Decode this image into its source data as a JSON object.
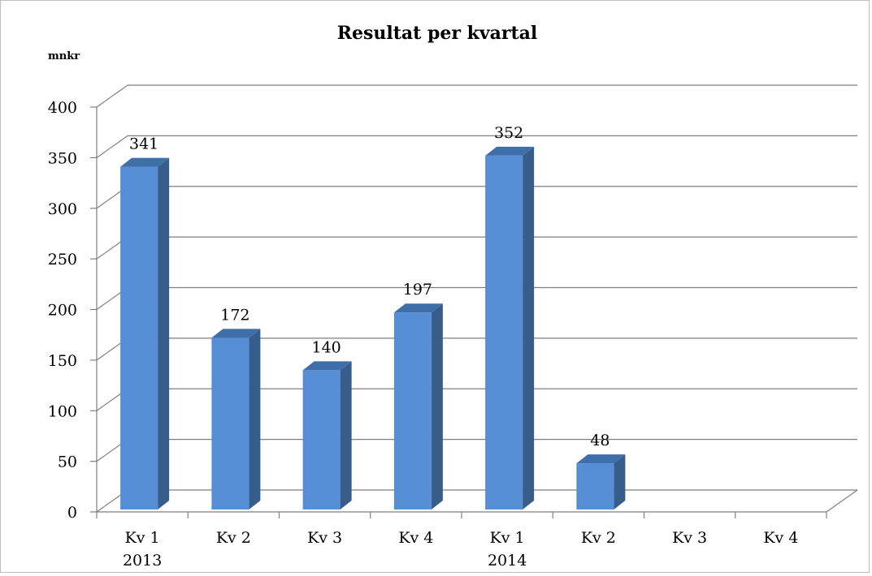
{
  "chart_data": {
    "type": "bar",
    "title": "Resultat per kvartal",
    "unit_label": "mnkr",
    "xlabel": "",
    "ylabel": "",
    "ylim": [
      0,
      400
    ],
    "yticks": [
      0,
      50,
      100,
      150,
      200,
      250,
      300,
      350,
      400
    ],
    "categories": [
      {
        "label": "Kv 1",
        "year": "2013"
      },
      {
        "label": "Kv 2",
        "year": ""
      },
      {
        "label": "Kv 3",
        "year": ""
      },
      {
        "label": "Kv 4",
        "year": ""
      },
      {
        "label": "Kv 1",
        "year": "2014"
      },
      {
        "label": "Kv 2",
        "year": ""
      },
      {
        "label": "Kv 3",
        "year": ""
      },
      {
        "label": "Kv 4",
        "year": ""
      }
    ],
    "values": [
      341,
      172,
      140,
      197,
      352,
      48,
      null,
      null
    ],
    "data_labels": [
      "341",
      "172",
      "140",
      "197",
      "352",
      "48",
      "",
      ""
    ],
    "grid": true,
    "legend": "none",
    "colors": {
      "bar_front": "#558ED5",
      "bar_side": "#375D8A",
      "bar_top": "#3F6FA8",
      "grid": "#7f7f7f",
      "axis": "#7f7f7f"
    }
  }
}
